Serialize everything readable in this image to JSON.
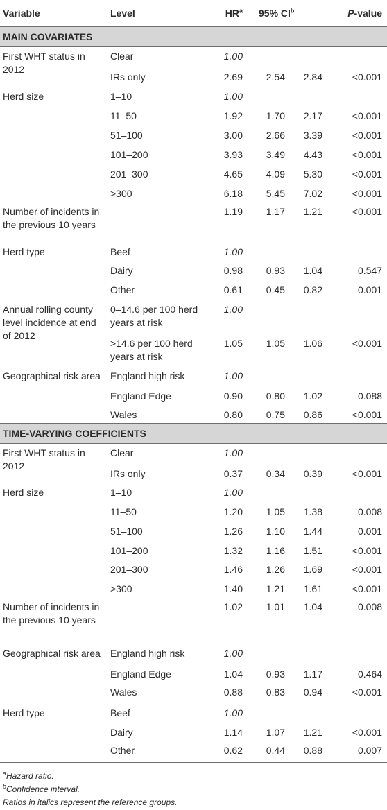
{
  "header": {
    "variable": "Variable",
    "level": "Level",
    "hr": "HR",
    "hr_sup": "a",
    "ci": "95% CI",
    "ci_sup": "b",
    "p": "P",
    "p_suffix": "-value"
  },
  "sections": [
    {
      "title": "MAIN COVARIATES",
      "rows": [
        {
          "variable": "First WHT status in 2012",
          "level": "Clear",
          "hr": "1.00",
          "ref": true,
          "lo": "",
          "hi": "",
          "p": "",
          "h": 30
        },
        {
          "variable": "",
          "level": "IRs only",
          "hr": "2.69",
          "lo": "2.54",
          "hi": "2.84",
          "p": "<0.001",
          "h": 28
        },
        {
          "variable": "Herd size",
          "level": "1–10",
          "hr": "1.00",
          "ref": true,
          "lo": "",
          "hi": "",
          "p": "",
          "h": 28
        },
        {
          "variable": "",
          "level": "11–50",
          "hr": "1.92",
          "lo": "1.70",
          "hi": "2.17",
          "p": "<0.001",
          "h": 28
        },
        {
          "variable": "",
          "level": "51–100",
          "hr": "3.00",
          "lo": "2.66",
          "hi": "3.39",
          "p": "<0.001",
          "h": 28
        },
        {
          "variable": "",
          "level": "101–200",
          "hr": "3.93",
          "lo": "3.49",
          "hi": "4.43",
          "p": "<0.001",
          "h": 28
        },
        {
          "variable": "",
          "level": "201–300",
          "hr": "4.65",
          "lo": "4.09",
          "hi": "5.30",
          "p": "<0.001",
          "h": 28
        },
        {
          "variable": "",
          "level": ">300",
          "hr": "6.18",
          "lo": "5.45",
          "hi": "7.02",
          "p": "<0.001",
          "h": 26
        },
        {
          "variable": "Number of incidents in the previous 10 years",
          "level": "",
          "hr": "1.19",
          "lo": "1.17",
          "hi": "1.21",
          "p": "<0.001",
          "h": 58
        },
        {
          "variable": "Herd type",
          "level": "Beef",
          "hr": "1.00",
          "ref": true,
          "lo": "",
          "hi": "",
          "p": "",
          "h": 27
        },
        {
          "variable": "",
          "level": "Dairy",
          "hr": "0.98",
          "lo": "0.93",
          "hi": "1.04",
          "p": "0.547",
          "h": 28
        },
        {
          "variable": "",
          "level": "Other",
          "hr": "0.61",
          "lo": "0.45",
          "hi": "0.82",
          "p": "0.001",
          "h": 28
        },
        {
          "variable": "Annual rolling county level incidence at end of 2012",
          "level": "0–14.6 per 100 herd years at risk",
          "hr": "1.00",
          "ref": true,
          "lo": "",
          "hi": "",
          "p": "",
          "h": 49
        },
        {
          "variable": "",
          "level": ">14.6 per 100 herd years at risk",
          "hr": "1.05",
          "lo": "1.05",
          "hi": "1.06",
          "p": "<0.001",
          "h": 47
        },
        {
          "variable": "Geographical risk area",
          "level": "England high risk",
          "hr": "1.00",
          "ref": true,
          "lo": "",
          "hi": "",
          "p": "",
          "h": 29
        },
        {
          "variable": "",
          "level": "England Edge",
          "hr": "0.90",
          "lo": "0.80",
          "hi": "1.02",
          "p": "0.088",
          "h": 27
        },
        {
          "variable": "",
          "level": "Wales",
          "hr": "0.80",
          "lo": "0.75",
          "hi": "0.86",
          "p": "<0.001",
          "h": 25
        }
      ]
    },
    {
      "title": "TIME-VARYING COEFFICIENTS",
      "rows": [
        {
          "variable": "First WHT status in 2012",
          "level": "Clear",
          "hr": "1.00",
          "ref": true,
          "lo": "",
          "hi": "",
          "p": "",
          "h": 30
        },
        {
          "variable": "",
          "level": "IRs only",
          "hr": "0.37",
          "lo": "0.34",
          "hi": "0.39",
          "p": "<0.001",
          "h": 27
        },
        {
          "variable": "Herd size",
          "level": "1–10",
          "hr": "1.00",
          "ref": true,
          "lo": "",
          "hi": "",
          "p": "",
          "h": 28
        },
        {
          "variable": "",
          "level": "11–50",
          "hr": "1.20",
          "lo": "1.05",
          "hi": "1.38",
          "p": "0.008",
          "h": 28
        },
        {
          "variable": "",
          "level": "51–100",
          "hr": "1.26",
          "lo": "1.10",
          "hi": "1.44",
          "p": "0.001",
          "h": 28
        },
        {
          "variable": "",
          "level": "101–200",
          "hr": "1.32",
          "lo": "1.16",
          "hi": "1.51",
          "p": "<0.001",
          "h": 27
        },
        {
          "variable": "",
          "level": "201–300",
          "hr": "1.46",
          "lo": "1.26",
          "hi": "1.69",
          "p": "<0.001",
          "h": 28
        },
        {
          "variable": "",
          "level": ">300",
          "hr": "1.40",
          "lo": "1.21",
          "hi": "1.61",
          "p": "<0.001",
          "h": 26
        },
        {
          "variable": "Number of incidents in the previous 10 years",
          "level": "",
          "hr": "1.02",
          "lo": "1.01",
          "hi": "1.04",
          "p": "0.008",
          "h": 67
        },
        {
          "variable": "Geographical risk area",
          "level": "England high risk",
          "hr": "1.00",
          "ref": true,
          "lo": "",
          "hi": "",
          "p": "",
          "h": 30
        },
        {
          "variable": "",
          "level": "England Edge",
          "hr": "1.04",
          "lo": "0.93",
          "hi": "1.17",
          "p": "0.464",
          "h": 26
        },
        {
          "variable": "",
          "level": "Wales",
          "hr": "0.88",
          "lo": "0.83",
          "hi": "0.94",
          "p": "<0.001",
          "h": 30
        },
        {
          "variable": "Herd type",
          "level": "Beef",
          "hr": "1.00",
          "ref": true,
          "lo": "",
          "hi": "",
          "p": "",
          "h": 28
        },
        {
          "variable": "",
          "level": "Dairy",
          "hr": "1.14",
          "lo": "1.07",
          "hi": "1.21",
          "p": "<0.001",
          "h": 26
        },
        {
          "variable": "",
          "level": "Other",
          "hr": "0.62",
          "lo": "0.44",
          "hi": "0.88",
          "p": "0.007",
          "h": 30
        }
      ]
    }
  ],
  "footnotes": {
    "a_mark": "a",
    "a_text": "Hazard ratio.",
    "b_mark": "b",
    "b_text": "Confidence interval.",
    "ref_note": "Ratios in italics represent the reference groups."
  }
}
